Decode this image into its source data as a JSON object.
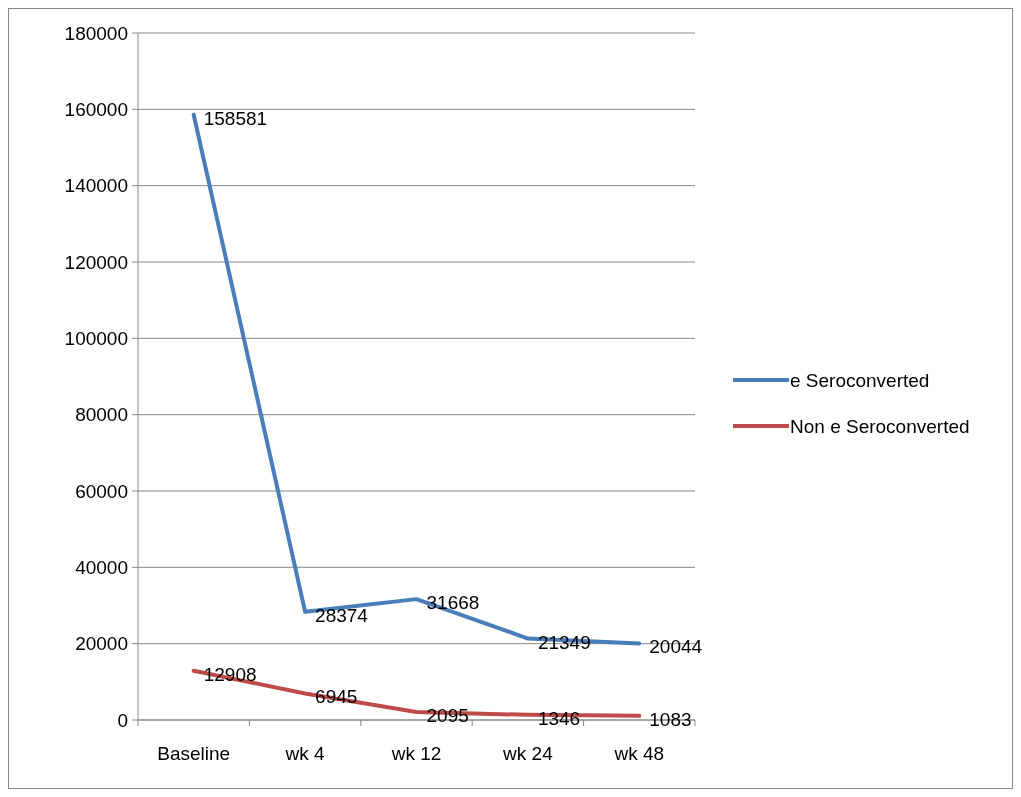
{
  "chart_data": {
    "type": "line",
    "categories": [
      "Baseline",
      "wk 4",
      "wk 12",
      "wk 24",
      "wk 48"
    ],
    "series": [
      {
        "name": "e Seroconverted",
        "color": "#4a7ebb",
        "values": [
          158581,
          28374,
          31668,
          21349,
          20044
        ]
      },
      {
        "name": "Non e Seroconverted",
        "color": "#be4b48",
        "values": [
          12908,
          6945,
          2095,
          1346,
          1083
        ]
      }
    ],
    "ylim": [
      0,
      180000
    ],
    "yticks": [
      0,
      20000,
      40000,
      60000,
      80000,
      100000,
      120000,
      140000,
      160000,
      180000
    ],
    "grid": "y",
    "legend": "right",
    "data_labels": true,
    "marker": "none",
    "line_style": "solid"
  }
}
